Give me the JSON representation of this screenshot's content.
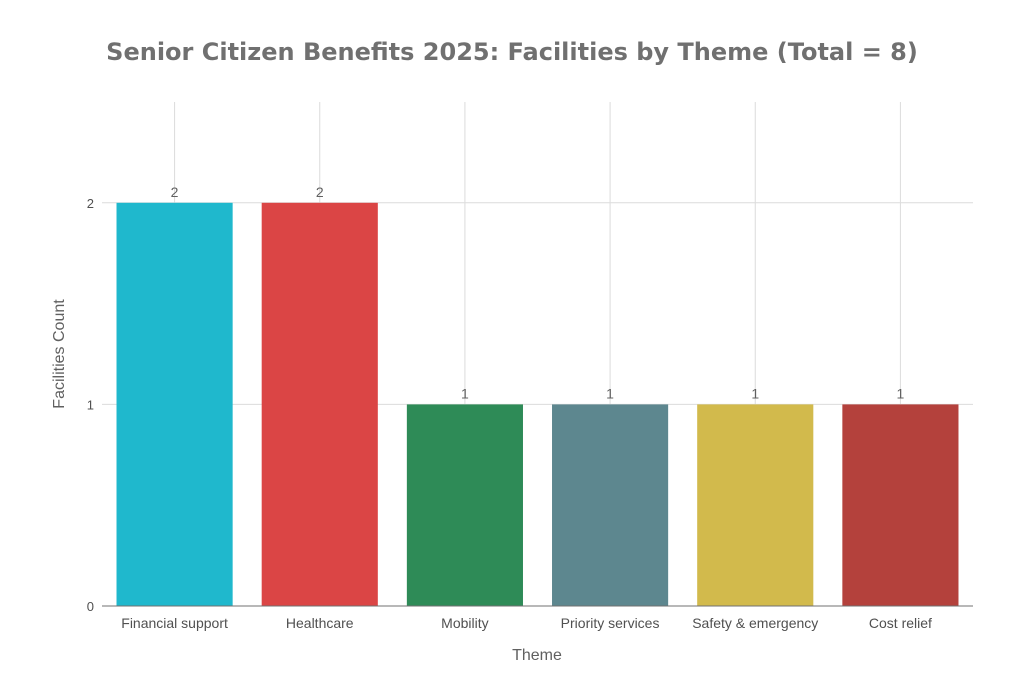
{
  "chart_data": {
    "type": "bar",
    "title": "Senior Citizen Benefits 2025: Facilities by Theme (Total = 8)",
    "xlabel": "Theme",
    "ylabel": "Facilities Count",
    "categories": [
      "Financial support",
      "Healthcare",
      "Mobility",
      "Priority services",
      "Safety & emergency",
      "Cost relief"
    ],
    "values": [
      2,
      2,
      1,
      1,
      1,
      1
    ],
    "data_labels": [
      "2",
      "2",
      "1",
      "1",
      "1",
      "1"
    ],
    "colors": [
      "#1fb8cd",
      "#db4545",
      "#2e8b57",
      "#5d878f",
      "#d2ba4c",
      "#b4413c"
    ],
    "yticks": [
      0,
      1,
      2
    ],
    "ytick_labels": [
      "0",
      "1",
      "2"
    ],
    "ylim": [
      0,
      2.5
    ],
    "grid": true,
    "legend": "none"
  }
}
